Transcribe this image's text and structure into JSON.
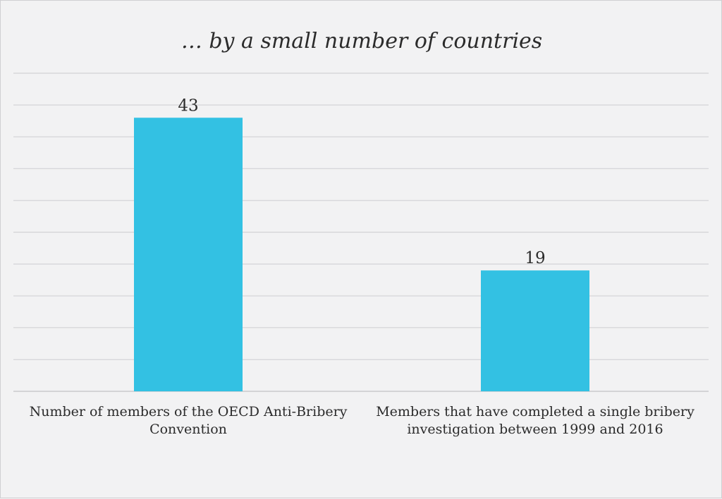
{
  "chart_data": {
    "type": "bar",
    "title": "… by a small number of countries",
    "categories": [
      "Number of members of the OECD Anti-Bribery Convention",
      "Members that have completed a single bribery investigation between 1999 and 2016"
    ],
    "values": [
      43,
      19
    ],
    "value_labels": [
      "43",
      "19"
    ],
    "ylim": [
      0,
      50
    ],
    "grid": true,
    "bar_color": "#33c1e3",
    "xlabel": "",
    "ylabel": ""
  }
}
